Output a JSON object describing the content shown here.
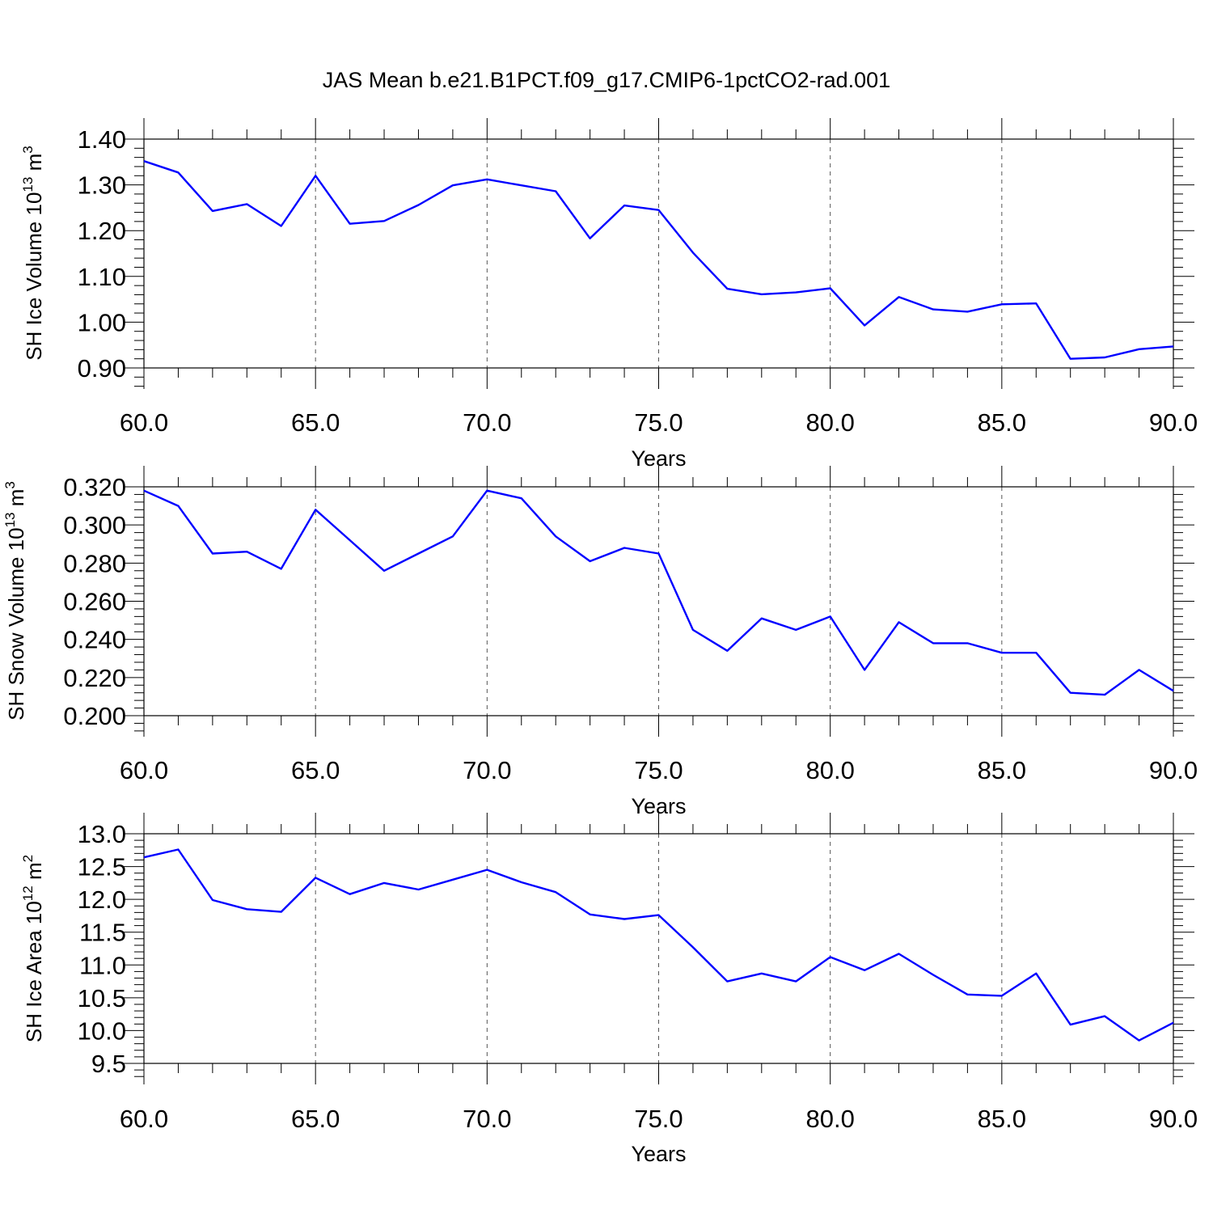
{
  "title": "JAS Mean b.e21.B1PCT.f09_g17.CMIP6-1pctCO2-rad.001",
  "colors": {
    "line": "#0000ff",
    "axis": "#000000",
    "grid": "#555555"
  },
  "chart_data": [
    {
      "type": "line",
      "ylabel_main": "SH Ice Volume 10",
      "ylabel_exp": "13",
      "ylabel_unit": "m",
      "ylabel_unit_exp": "3",
      "xlabel": "Years",
      "xlim": [
        60,
        90
      ],
      "ylim": [
        0.9,
        1.4
      ],
      "xticks": [
        60,
        65,
        70,
        75,
        80,
        85,
        90
      ],
      "xtick_labels": [
        "60.0",
        "65.0",
        "70.0",
        "75.0",
        "80.0",
        "85.0",
        "90.0"
      ],
      "yticks": [
        0.9,
        1.0,
        1.1,
        1.2,
        1.3,
        1.4
      ],
      "ytick_labels": [
        "0.90",
        "1.00",
        "1.10",
        "1.20",
        "1.30",
        "1.40"
      ],
      "grid": "vertical dashed at major x ticks",
      "x": [
        60,
        61,
        62,
        63,
        64,
        65,
        66,
        67,
        68,
        69,
        70,
        71,
        72,
        73,
        74,
        75,
        76,
        77,
        78,
        79,
        80,
        81,
        82,
        83,
        84,
        85,
        86,
        87,
        88,
        89,
        90
      ],
      "y": [
        1.352,
        1.327,
        1.243,
        1.258,
        1.21,
        1.32,
        1.215,
        1.221,
        1.256,
        1.299,
        1.312,
        1.299,
        1.286,
        1.183,
        1.255,
        1.245,
        1.152,
        1.073,
        1.061,
        1.065,
        1.074,
        0.993,
        1.055,
        1.028,
        1.023,
        1.039,
        1.041,
        0.92,
        0.923,
        0.941,
        0.947
      ]
    },
    {
      "type": "line",
      "ylabel_main": "SH Snow Volume 10",
      "ylabel_exp": "13",
      "ylabel_unit": "m",
      "ylabel_unit_exp": "3",
      "xlabel": "Years",
      "xlim": [
        60,
        90
      ],
      "ylim": [
        0.2,
        0.32
      ],
      "xticks": [
        60,
        65,
        70,
        75,
        80,
        85,
        90
      ],
      "xtick_labels": [
        "60.0",
        "65.0",
        "70.0",
        "75.0",
        "80.0",
        "85.0",
        "90.0"
      ],
      "yticks": [
        0.2,
        0.22,
        0.24,
        0.26,
        0.28,
        0.3,
        0.32
      ],
      "ytick_labels": [
        "0.200",
        "0.220",
        "0.240",
        "0.260",
        "0.280",
        "0.300",
        "0.320"
      ],
      "grid": "vertical dashed at major x ticks",
      "x": [
        60,
        61,
        62,
        63,
        64,
        65,
        66,
        67,
        68,
        69,
        70,
        71,
        72,
        73,
        74,
        75,
        76,
        77,
        78,
        79,
        80,
        81,
        82,
        83,
        84,
        85,
        86,
        87,
        88,
        89,
        90
      ],
      "y": [
        0.318,
        0.31,
        0.285,
        0.286,
        0.277,
        0.308,
        0.292,
        0.276,
        0.285,
        0.294,
        0.318,
        0.314,
        0.294,
        0.281,
        0.288,
        0.285,
        0.245,
        0.234,
        0.251,
        0.245,
        0.252,
        0.224,
        0.249,
        0.238,
        0.238,
        0.233,
        0.233,
        0.212,
        0.211,
        0.224,
        0.213
      ]
    },
    {
      "type": "line",
      "ylabel_main": "SH Ice Area 10",
      "ylabel_exp": "12",
      "ylabel_unit": "m",
      "ylabel_unit_exp": "2",
      "xlabel": "Years",
      "xlim": [
        60,
        90
      ],
      "ylim": [
        9.5,
        13.0
      ],
      "xticks": [
        60,
        65,
        70,
        75,
        80,
        85,
        90
      ],
      "xtick_labels": [
        "60.0",
        "65.0",
        "70.0",
        "75.0",
        "80.0",
        "85.0",
        "90.0"
      ],
      "yticks": [
        9.5,
        10.0,
        10.5,
        11.0,
        11.5,
        12.0,
        12.5,
        13.0
      ],
      "ytick_labels": [
        "9.5",
        "10.0",
        "10.5",
        "11.0",
        "11.5",
        "12.0",
        "12.5",
        "13.0"
      ],
      "grid": "vertical dashed at major x ticks",
      "x": [
        60,
        61,
        62,
        63,
        64,
        65,
        66,
        67,
        68,
        69,
        70,
        71,
        72,
        73,
        74,
        75,
        76,
        77,
        78,
        79,
        80,
        81,
        82,
        83,
        84,
        85,
        86,
        87,
        88,
        89,
        90
      ],
      "y": [
        12.64,
        12.76,
        11.99,
        11.85,
        11.81,
        12.33,
        12.08,
        12.25,
        12.15,
        12.3,
        12.45,
        12.26,
        12.11,
        11.77,
        11.7,
        11.76,
        11.27,
        10.75,
        10.87,
        10.75,
        11.12,
        10.92,
        11.17,
        10.85,
        10.55,
        10.53,
        10.87,
        10.09,
        10.22,
        9.85,
        10.12
      ]
    }
  ]
}
